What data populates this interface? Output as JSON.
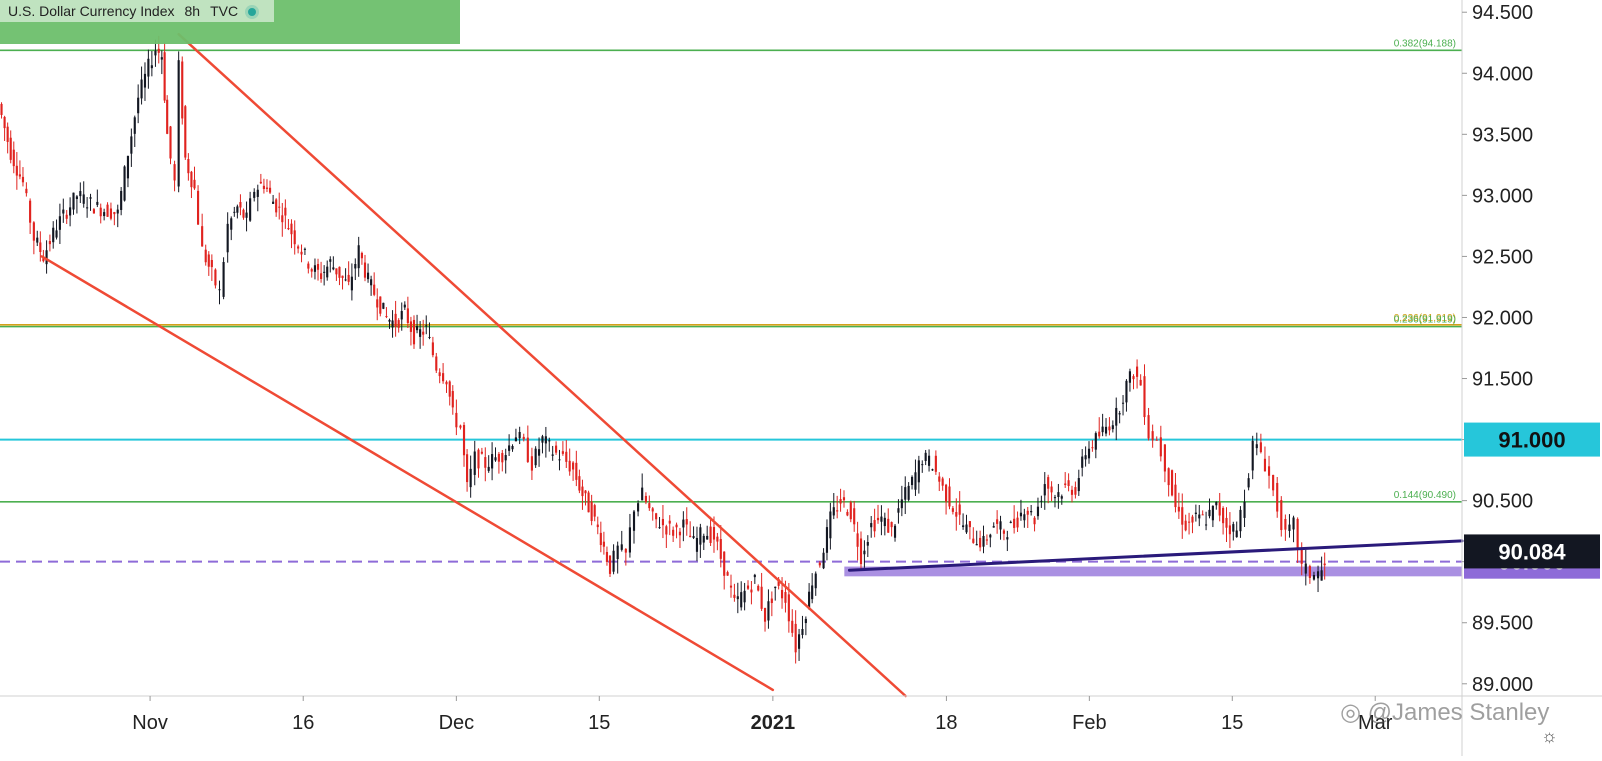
{
  "header": {
    "symbol": "U.S. Dollar Currency Index",
    "interval": "8h",
    "source": "TVC"
  },
  "watermark": "@James Stanley",
  "colors": {
    "up": "#131722",
    "down": "#e0231f",
    "wedge": "#ef4a35",
    "fib": "#4caf50",
    "fib_gold": "#d4a11a",
    "cyan_level": "#26c6da",
    "support": "#8e6bd8",
    "trendline": "#2a1a7a",
    "axis_text": "#222222"
  },
  "chart_data": {
    "type": "candlestick",
    "title": "U.S. Dollar Currency Index",
    "interval": "8h",
    "source": "TVC",
    "y_axis": {
      "ylim": [
        88.9,
        94.6
      ],
      "ticks": [
        "94.500",
        "94.000",
        "93.500",
        "93.000",
        "92.500",
        "92.000",
        "91.500",
        "91.000",
        "90.500",
        "90.000",
        "89.500",
        "89.000"
      ]
    },
    "x_axis": {
      "ticks": [
        {
          "label": "Nov",
          "day": 0
        },
        {
          "label": "16",
          "day": 15
        },
        {
          "label": "Dec",
          "day": 30
        },
        {
          "label": "15",
          "day": 44
        },
        {
          "label": "2021",
          "day": 61,
          "bold": true
        },
        {
          "label": "18",
          "day": 78
        },
        {
          "label": "Feb",
          "day": 92
        },
        {
          "label": "15",
          "day": 106
        },
        {
          "label": "Mar",
          "day": 120
        }
      ],
      "day_range": [
        -14.7,
        128.5
      ]
    },
    "price_path": [
      [
        -14.7,
        93.75
      ],
      [
        -13.5,
        93.35
      ],
      [
        -12.3,
        93.1
      ],
      [
        -11.2,
        92.65
      ],
      [
        -10.3,
        92.5
      ],
      [
        -9,
        92.75
      ],
      [
        -7,
        93.0
      ],
      [
        -5,
        92.9
      ],
      [
        -3,
        92.85
      ],
      [
        -2,
        93.35
      ],
      [
        -1,
        93.8
      ],
      [
        0,
        94.05
      ],
      [
        0.7,
        94.2
      ],
      [
        1.3,
        94.15
      ],
      [
        1.8,
        93.5
      ],
      [
        2.6,
        93.1
      ],
      [
        3,
        94.05
      ],
      [
        3.6,
        93.3
      ],
      [
        4.5,
        93.05
      ],
      [
        5.3,
        92.55
      ],
      [
        6.2,
        92.35
      ],
      [
        7,
        92.2
      ],
      [
        7.8,
        92.75
      ],
      [
        8.7,
        92.9
      ],
      [
        9.6,
        92.8
      ],
      [
        10.4,
        93.05
      ],
      [
        11.3,
        93.1
      ],
      [
        12.2,
        92.95
      ],
      [
        13.1,
        92.85
      ],
      [
        14,
        92.7
      ],
      [
        15,
        92.55
      ],
      [
        16,
        92.4
      ],
      [
        16.9,
        92.35
      ],
      [
        17.8,
        92.45
      ],
      [
        18.7,
        92.35
      ],
      [
        19.6,
        92.25
      ],
      [
        20.6,
        92.55
      ],
      [
        21.5,
        92.3
      ],
      [
        22.4,
        92.15
      ],
      [
        23.3,
        92.0
      ],
      [
        24.2,
        91.95
      ],
      [
        25.1,
        92.05
      ],
      [
        26,
        91.85
      ],
      [
        27.2,
        91.9
      ],
      [
        28.2,
        91.6
      ],
      [
        29.2,
        91.5
      ],
      [
        29.8,
        91.2
      ],
      [
        30.6,
        91.1
      ],
      [
        31.2,
        90.6
      ],
      [
        32,
        90.85
      ],
      [
        33,
        90.8
      ],
      [
        34,
        90.85
      ],
      [
        35,
        90.9
      ],
      [
        36,
        91.05
      ],
      [
        36.8,
        90.95
      ],
      [
        37.6,
        90.8
      ],
      [
        38.6,
        91.0
      ],
      [
        39.6,
        90.9
      ],
      [
        40.6,
        90.85
      ],
      [
        41.6,
        90.75
      ],
      [
        42.5,
        90.55
      ],
      [
        43.4,
        90.4
      ],
      [
        44.3,
        90.2
      ],
      [
        45.2,
        89.95
      ],
      [
        46,
        90.1
      ],
      [
        46.8,
        90.05
      ],
      [
        47.6,
        90.45
      ],
      [
        48.4,
        90.55
      ],
      [
        49.4,
        90.35
      ],
      [
        50.4,
        90.3
      ],
      [
        51.4,
        90.25
      ],
      [
        52.4,
        90.3
      ],
      [
        53.4,
        90.15
      ],
      [
        54.4,
        90.25
      ],
      [
        55.4,
        90.2
      ],
      [
        56.4,
        89.95
      ],
      [
        57.4,
        89.65
      ],
      [
        58.4,
        89.75
      ],
      [
        59.4,
        89.85
      ],
      [
        60.4,
        89.55
      ],
      [
        61.4,
        89.8
      ],
      [
        62.4,
        89.7
      ],
      [
        63.4,
        89.3
      ],
      [
        64.4,
        89.6
      ],
      [
        65,
        89.85
      ],
      [
        65.8,
        90.0
      ],
      [
        66.8,
        90.35
      ],
      [
        67.8,
        90.5
      ],
      [
        68.8,
        90.4
      ],
      [
        69.8,
        90.05
      ],
      [
        70.8,
        90.3
      ],
      [
        71.8,
        90.35
      ],
      [
        72.8,
        90.25
      ],
      [
        73.8,
        90.5
      ],
      [
        74.8,
        90.65
      ],
      [
        75.8,
        90.85
      ],
      [
        76.8,
        90.8
      ],
      [
        77.8,
        90.6
      ],
      [
        78.8,
        90.45
      ],
      [
        79.8,
        90.3
      ],
      [
        80.8,
        90.2
      ],
      [
        81.8,
        90.15
      ],
      [
        82.8,
        90.3
      ],
      [
        83.8,
        90.25
      ],
      [
        84.8,
        90.3
      ],
      [
        85.8,
        90.45
      ],
      [
        86.8,
        90.35
      ],
      [
        87.8,
        90.65
      ],
      [
        88.8,
        90.55
      ],
      [
        89.8,
        90.6
      ],
      [
        90.8,
        90.6
      ],
      [
        91.8,
        90.9
      ],
      [
        92.8,
        91.0
      ],
      [
        93.8,
        91.1
      ],
      [
        94.8,
        91.2
      ],
      [
        95.8,
        91.45
      ],
      [
        96.5,
        91.55
      ],
      [
        97.2,
        91.45
      ],
      [
        98,
        91.05
      ],
      [
        98.8,
        91.0
      ],
      [
        99.6,
        90.8
      ],
      [
        100.6,
        90.45
      ],
      [
        101.6,
        90.3
      ],
      [
        102.6,
        90.35
      ],
      [
        103.6,
        90.35
      ],
      [
        104.6,
        90.45
      ],
      [
        105.6,
        90.3
      ],
      [
        106.6,
        90.25
      ],
      [
        107.4,
        90.55
      ],
      [
        108.2,
        90.95
      ],
      [
        109,
        90.9
      ],
      [
        109.8,
        90.7
      ],
      [
        110.6,
        90.45
      ],
      [
        111.4,
        90.2
      ],
      [
        112.2,
        90.3
      ],
      [
        113,
        89.95
      ],
      [
        113.8,
        89.9
      ],
      [
        114.6,
        89.9
      ],
      [
        115.2,
        89.95
      ]
    ],
    "horizontal_levels": [
      {
        "label": "0.382(94.188)",
        "value": 94.188,
        "color": "fib"
      },
      {
        "label": "0.236(91.919)",
        "value": 91.94,
        "color": "fib_gold"
      },
      {
        "label": "0.236(91.919)",
        "value": 91.925,
        "color": "fib"
      },
      {
        "label": "91.000",
        "value": 91.0,
        "color": "cyan_level",
        "tag": true
      },
      {
        "label": "0.144(90.490)",
        "value": 90.49,
        "color": "fib"
      },
      {
        "label": "90.000",
        "value": 90.0,
        "color": "support",
        "tag": true,
        "dashed": true
      }
    ],
    "last_price": {
      "label": "90.084",
      "value": 90.084
    },
    "support_zone": {
      "from_day": 68,
      "to_day": 128.5,
      "low": 89.88,
      "high": 89.96
    },
    "trendlines": [
      {
        "name": "wedge-upper",
        "from": [
          2.8,
          94.32
        ],
        "to": [
          74,
          88.9
        ],
        "color": "wedge"
      },
      {
        "name": "wedge-lower",
        "from": [
          -10.6,
          92.5
        ],
        "to": [
          61,
          88.95
        ],
        "color": "wedge"
      },
      {
        "name": "rising-support",
        "from": [
          68.5,
          89.93
        ],
        "to": [
          128.5,
          90.17
        ],
        "color": "trendline"
      }
    ]
  }
}
